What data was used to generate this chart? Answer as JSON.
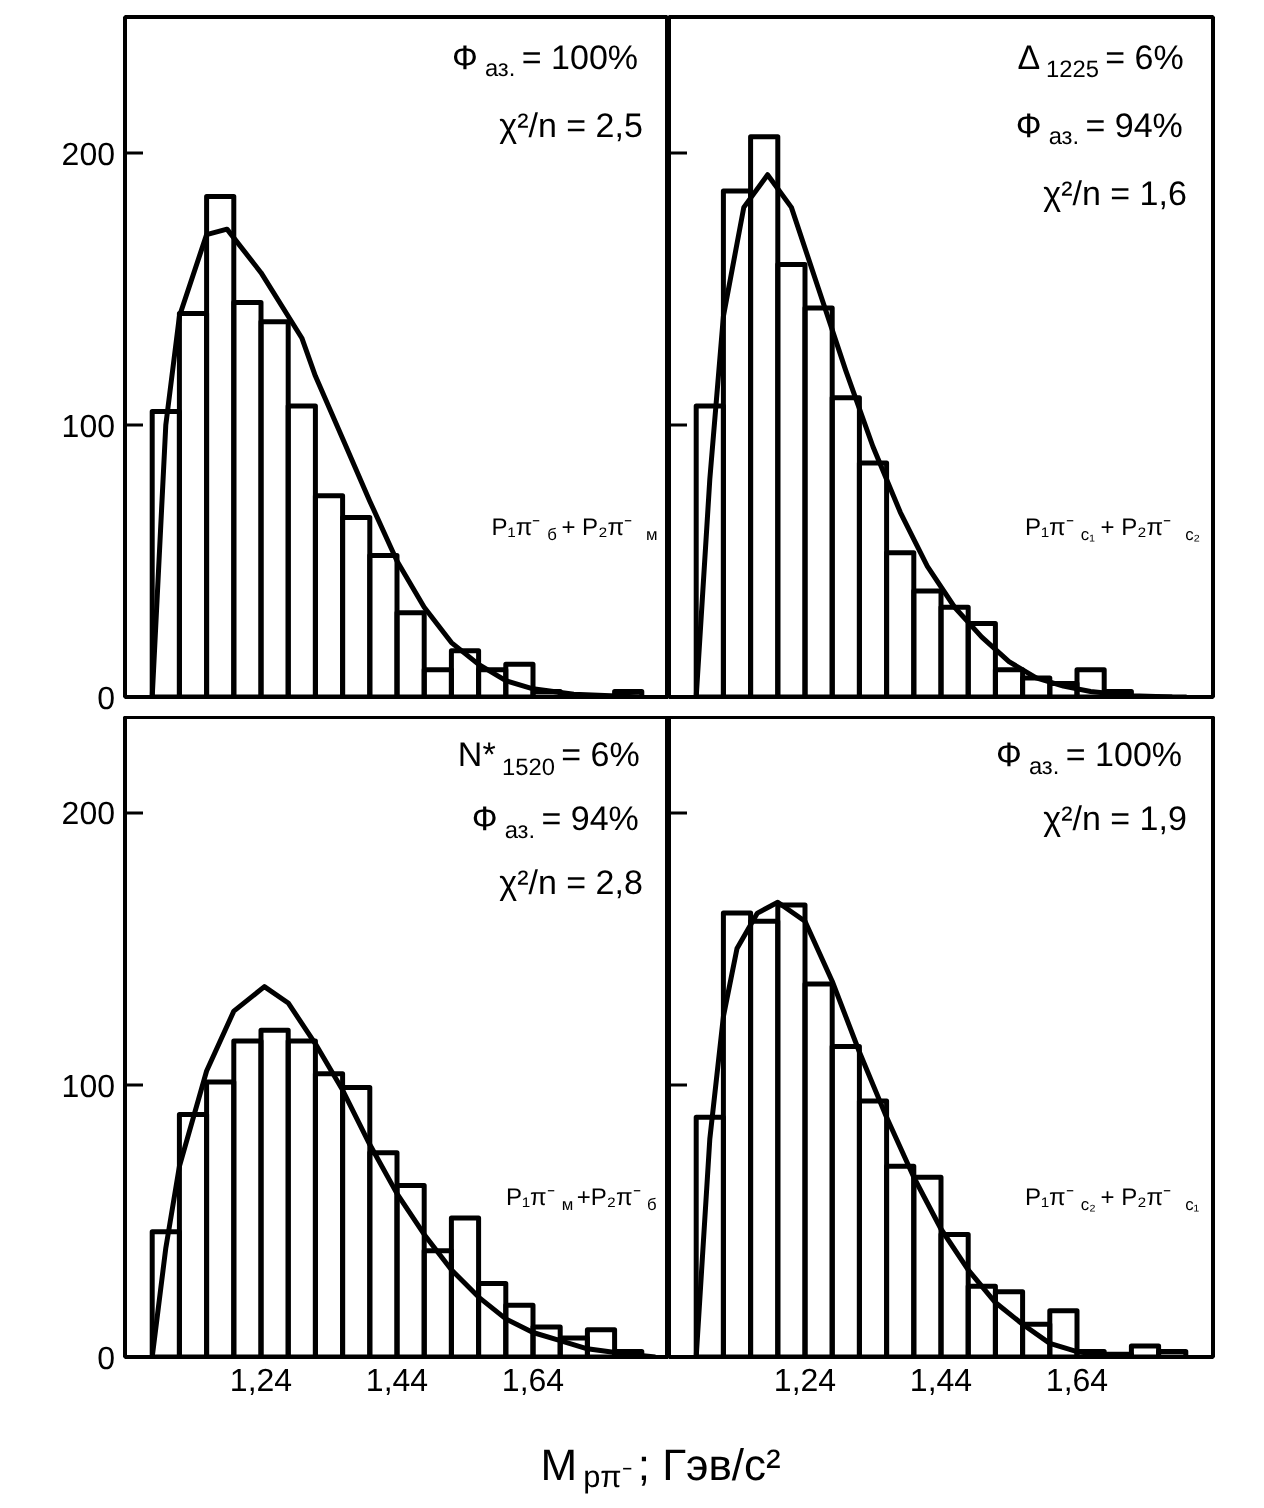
{
  "chart_data": [
    {
      "type": "histogram",
      "xlim": [
        1.04,
        1.84
      ],
      "ylim": [
        0,
        250
      ],
      "xticks": [
        {
          "value": 1.24,
          "label": null
        },
        {
          "value": 1.44,
          "label": null
        },
        {
          "value": 1.64,
          "label": null
        }
      ],
      "yticks": [
        0,
        100,
        200
      ],
      "tick_labels": "y",
      "annotations": [
        "Ф$_{аз.}$ = 100%",
        "χ²/n = 2,5",
        "P₁π⁻$_{б}$ + P₂π⁻$_{м}$"
      ],
      "series": [
        {
          "type": "histogram",
          "color": "#000000",
          "bins": [
            1.08,
            1.12,
            1.16,
            1.2,
            1.24,
            1.28,
            1.32,
            1.36,
            1.4,
            1.44,
            1.48,
            1.52,
            1.56,
            1.6,
            1.64,
            1.68,
            1.72,
            1.76,
            1.8
          ],
          "values": [
            105,
            141,
            184,
            145,
            138,
            107,
            74,
            66,
            52,
            31,
            10,
            17,
            10,
            12,
            2,
            0,
            0,
            2
          ]
        },
        {
          "type": "line",
          "color": "#000000",
          "x": [
            1.08,
            1.1,
            1.12,
            1.16,
            1.19,
            1.24,
            1.3,
            1.32,
            1.36,
            1.4,
            1.44,
            1.48,
            1.52,
            1.56,
            1.6,
            1.64,
            1.7,
            1.8
          ],
          "values": [
            0,
            100,
            140,
            170,
            172,
            156,
            132,
            118,
            95,
            72,
            50,
            33,
            20,
            12,
            6,
            3,
            1,
            0
          ]
        }
      ]
    },
    {
      "type": "histogram",
      "xlim": [
        1.04,
        1.84
      ],
      "ylim": [
        0,
        250
      ],
      "xticks": [
        {
          "value": 1.24,
          "label": null
        },
        {
          "value": 1.44,
          "label": null
        },
        {
          "value": 1.64,
          "label": null
        }
      ],
      "yticks": [
        0,
        100,
        200
      ],
      "tick_labels": false,
      "annotations": [
        "Δ$_{1225}$ = 6%",
        "Ф$_{аз.}$ = 94%",
        "χ²/n = 1,6",
        "P₁π⁻$_{c₁}$ + P₂π⁻$_{c₂}$"
      ],
      "series": [
        {
          "type": "histogram",
          "color": "#000000",
          "bins": [
            1.08,
            1.12,
            1.16,
            1.2,
            1.24,
            1.28,
            1.32,
            1.36,
            1.4,
            1.44,
            1.48,
            1.52,
            1.56,
            1.6,
            1.64,
            1.68,
            1.72,
            1.76,
            1.8
          ],
          "values": [
            107,
            186,
            206,
            159,
            143,
            110,
            86,
            53,
            39,
            33,
            27,
            10,
            7,
            5,
            10,
            2,
            0,
            0
          ]
        },
        {
          "type": "line",
          "color": "#000000",
          "x": [
            1.08,
            1.1,
            1.12,
            1.15,
            1.185,
            1.22,
            1.26,
            1.3,
            1.34,
            1.38,
            1.42,
            1.46,
            1.5,
            1.54,
            1.58,
            1.62,
            1.66,
            1.72,
            1.78
          ],
          "values": [
            0,
            80,
            140,
            180,
            192,
            180,
            150,
            120,
            92,
            68,
            48,
            33,
            22,
            13,
            7,
            4,
            2,
            0.5,
            0
          ]
        }
      ]
    },
    {
      "type": "histogram",
      "xlim": [
        1.04,
        1.84
      ],
      "ylim": [
        0,
        235
      ],
      "xticks": [
        {
          "value": 1.24,
          "label": "1,24"
        },
        {
          "value": 1.44,
          "label": "1,44"
        },
        {
          "value": 1.64,
          "label": "1,64"
        }
      ],
      "yticks": [
        0,
        100,
        200
      ],
      "xlabel": "M$_{pπ⁻}$; Гэв/c²",
      "annotations": [
        "N*$_{1520}$ = 6%",
        "Ф$_{аз.}$ = 94%",
        "χ²/n = 2,8",
        "P₁π⁻$_{м}$+P₂π⁻$_{б}$"
      ],
      "series": [
        {
          "type": "histogram",
          "color": "#000000",
          "bins": [
            1.08,
            1.12,
            1.16,
            1.2,
            1.24,
            1.28,
            1.32,
            1.36,
            1.4,
            1.44,
            1.48,
            1.52,
            1.56,
            1.6,
            1.64,
            1.68,
            1.72,
            1.76,
            1.8
          ],
          "values": [
            46,
            89,
            101,
            116,
            120,
            116,
            104,
            99,
            75,
            63,
            39,
            51,
            27,
            19,
            11,
            7,
            10,
            2
          ]
        },
        {
          "type": "line",
          "color": "#000000",
          "x": [
            1.08,
            1.1,
            1.12,
            1.16,
            1.2,
            1.245,
            1.28,
            1.32,
            1.36,
            1.4,
            1.44,
            1.48,
            1.52,
            1.56,
            1.6,
            1.64,
            1.68,
            1.72,
            1.78,
            1.82
          ],
          "values": [
            0,
            40,
            70,
            105,
            127,
            136,
            130,
            115,
            98,
            78,
            60,
            45,
            32,
            22,
            14,
            9,
            6,
            3,
            1,
            0
          ]
        }
      ]
    },
    {
      "type": "histogram",
      "xlim": [
        1.04,
        1.84
      ],
      "ylim": [
        0,
        235
      ],
      "xticks": [
        {
          "value": 1.24,
          "label": "1,24"
        },
        {
          "value": 1.44,
          "label": "1,44"
        },
        {
          "value": 1.64,
          "label": "1,64"
        }
      ],
      "yticks": [
        0,
        100,
        200
      ],
      "tick_labels": "x",
      "annotations": [
        "Ф$_{аз.}$ = 100%",
        "χ²/n = 1,9",
        "P₁π⁻$_{c₂}$ + P₂π⁻$_{c₁}$"
      ],
      "series": [
        {
          "type": "histogram",
          "color": "#000000",
          "bins": [
            1.08,
            1.12,
            1.16,
            1.2,
            1.24,
            1.28,
            1.32,
            1.36,
            1.4,
            1.44,
            1.48,
            1.52,
            1.56,
            1.6,
            1.64,
            1.68,
            1.72,
            1.76,
            1.8
          ],
          "values": [
            88,
            163,
            160,
            166,
            137,
            114,
            94,
            70,
            66,
            45,
            26,
            24,
            12,
            17,
            2,
            1,
            4,
            2
          ]
        },
        {
          "type": "line",
          "color": "#000000",
          "x": [
            1.08,
            1.1,
            1.12,
            1.14,
            1.17,
            1.2,
            1.24,
            1.28,
            1.32,
            1.36,
            1.4,
            1.44,
            1.48,
            1.52,
            1.56,
            1.6,
            1.64,
            1.68,
            1.72
          ],
          "values": [
            0,
            80,
            125,
            150,
            163,
            167,
            160,
            138,
            112,
            88,
            66,
            47,
            32,
            20,
            12,
            5,
            2,
            0.5,
            0
          ]
        }
      ]
    }
  ]
}
